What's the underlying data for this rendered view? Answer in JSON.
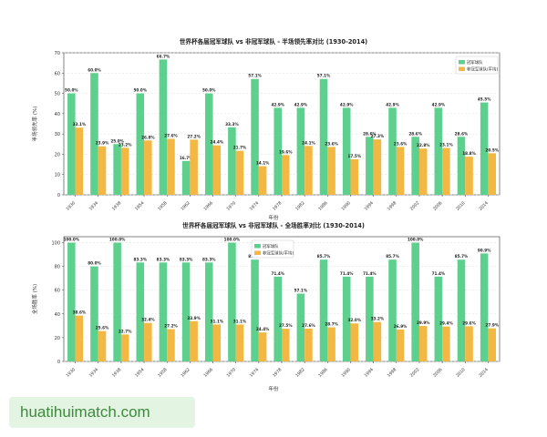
{
  "chart_data": [
    {
      "type": "bar",
      "title": "世界杯各届冠军球队 vs 非冠军球队 - 半场领先率对比 (1930-2014)",
      "xlabel": "年份",
      "ylabel": "半场领先率 (%)",
      "ylim": [
        0,
        70
      ],
      "yticks": [
        0,
        10,
        20,
        30,
        40,
        50,
        60,
        70
      ],
      "grid": true,
      "legend_position": "top-right",
      "categories": [
        "1930",
        "1934",
        "1938",
        "1954",
        "1958",
        "1962",
        "1966",
        "1970",
        "1974",
        "1978",
        "1982",
        "1986",
        "1990",
        "1994",
        "1998",
        "2002",
        "2006",
        "2010",
        "2014"
      ],
      "series": [
        {
          "name": "冠军球队",
          "color": "#5dd08e",
          "values": [
            50.0,
            60.0,
            25.0,
            50.0,
            66.7,
            16.7,
            50.0,
            33.3,
            57.1,
            42.9,
            42.9,
            57.1,
            42.9,
            28.6,
            42.9,
            28.6,
            42.9,
            28.6,
            45.5
          ],
          "labels": [
            "50.0%",
            "60.0%",
            "25.0%",
            "50.0%",
            "66.7%",
            "16.7%",
            "50.0%",
            "33.3%",
            "57.1%",
            "42.9%",
            "42.9%",
            "57.1%",
            "42.9%",
            "28.6%",
            "42.9%",
            "28.6%",
            "42.9%",
            "28.6%",
            "45.5%"
          ]
        },
        {
          "name": "非冠军球队(平均)",
          "color": "#f3b743",
          "values": [
            33.1,
            23.9,
            23.2,
            26.8,
            27.6,
            27.2,
            24.4,
            21.7,
            14.1,
            19.6,
            24.1,
            23.6,
            17.5,
            27.3,
            23.6,
            22.8,
            23.1,
            18.8,
            20.5
          ],
          "labels": [
            "33.1%",
            "23.9%",
            "23.2%",
            "26.8%",
            "27.6%",
            "27.2%",
            "24.4%",
            "21.7%",
            "14.1%",
            "19.6%",
            "24.1%",
            "23.6%",
            "17.5%",
            "27.3%",
            "23.6%",
            "22.8%",
            "23.1%",
            "18.8%",
            "20.5%"
          ]
        }
      ]
    },
    {
      "type": "bar",
      "title": "世界杯各届冠军球队 vs 非冠军球队 - 全场胜率对比 (1930-2014)",
      "xlabel": "年份",
      "ylabel": "全场胜率 (%)",
      "ylim": [
        0,
        105
      ],
      "yticks": [
        0,
        20,
        40,
        60,
        80,
        100
      ],
      "grid": true,
      "legend_position": "top-left",
      "categories": [
        "1930",
        "1934",
        "1938",
        "1954",
        "1958",
        "1962",
        "1966",
        "1970",
        "1974",
        "1978",
        "1982",
        "1986",
        "1990",
        "1994",
        "1998",
        "2002",
        "2006",
        "2010",
        "2014"
      ],
      "series": [
        {
          "name": "冠军球队",
          "color": "#5dd08e",
          "values": [
            100.0,
            80.0,
            100.0,
            83.3,
            83.3,
            83.3,
            83.3,
            100.0,
            85.7,
            71.4,
            57.1,
            85.7,
            71.4,
            71.4,
            85.7,
            100.0,
            71.4,
            85.7,
            90.9
          ],
          "labels": [
            "100.0%",
            "80.0%",
            "100.0%",
            "83.3%",
            "83.3%",
            "83.3%",
            "83.3%",
            "100.0%",
            "85.7%",
            "71.4%",
            "57.1%",
            "85.7%",
            "71.4%",
            "71.4%",
            "85.7%",
            "100.0%",
            "71.4%",
            "85.7%",
            "90.9%"
          ]
        },
        {
          "name": "非冠军球队(平均)",
          "color": "#f3b743",
          "values": [
            38.6,
            25.6,
            22.7,
            32.4,
            27.2,
            33.9,
            31.1,
            31.1,
            24.4,
            27.5,
            27.6,
            28.7,
            32.0,
            33.2,
            26.9,
            29.9,
            29.4,
            29.6,
            27.9
          ],
          "labels": [
            "38.6%",
            "25.6%",
            "22.7%",
            "32.4%",
            "27.2%",
            "33.9%",
            "31.1%",
            "31.1%",
            "24.4%",
            "27.5%",
            "27.6%",
            "28.7%",
            "32.0%",
            "33.2%",
            "26.9%",
            "29.9%",
            "29.4%",
            "29.6%",
            "27.9%"
          ]
        }
      ]
    }
  ],
  "watermark": {
    "text": "huatihuimatch.com"
  }
}
